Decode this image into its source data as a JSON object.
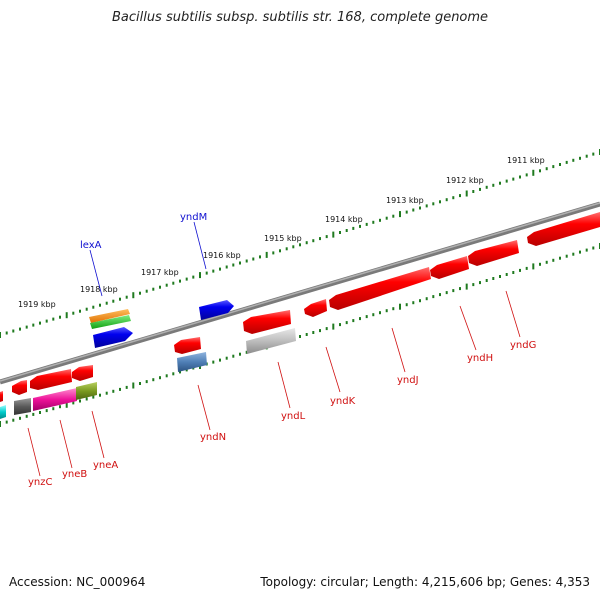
{
  "title": "Bacillus subtilis subsp. subtilis str. 168, complete genome",
  "footer": {
    "accession": "Accession: NC_000964",
    "topology": "Topology: circular; Length: 4,215,606 bp; Genes: 4,353"
  },
  "colors": {
    "backbone": "#7a7a7a",
    "tick": "#1f7a1f",
    "plus_label": "#1010d0",
    "minus_label": "#d01010"
  },
  "scale_labels": [
    "1911 kbp",
    "1912 kbp",
    "1913 kbp",
    "1914 kbp",
    "1915 kbp",
    "1916 kbp",
    "1917 kbp",
    "1918 kbp",
    "1919 kbp"
  ],
  "gene_labels": {
    "plus": [
      "lexA",
      "yndM"
    ],
    "minus": [
      "ynzC",
      "yneB",
      "yneA",
      "yndN",
      "yndL",
      "yndK",
      "yndJ",
      "yndH",
      "yndG"
    ]
  }
}
